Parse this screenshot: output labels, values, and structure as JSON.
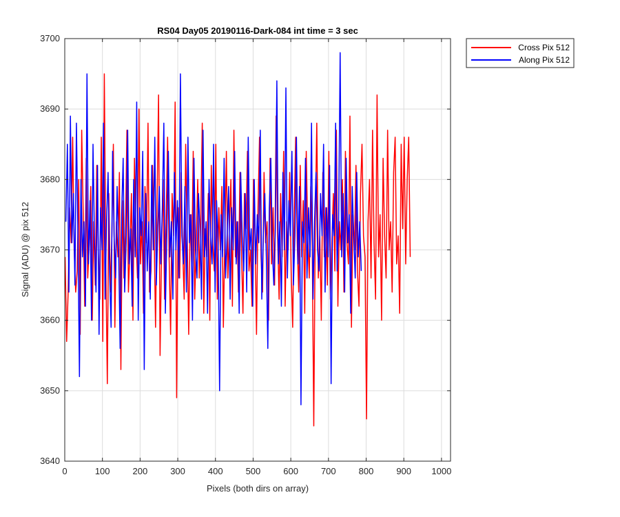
{
  "chart_data": {
    "type": "line",
    "title": "RS04 Day05 20190116-Dark-084 int time = 3 sec",
    "xlabel": "Pixels (both dirs on array)",
    "ylabel": "Signal (ADU) @ pix 512",
    "xlim": [
      0,
      1024
    ],
    "ylim": [
      3640,
      3700
    ],
    "xticks": [
      0,
      100,
      200,
      300,
      400,
      500,
      600,
      700,
      800,
      900,
      1000
    ],
    "yticks": [
      3640,
      3650,
      3660,
      3670,
      3680,
      3690,
      3700
    ],
    "grid": true,
    "legend_position": "outside-top-right",
    "series": [
      {
        "name": "Cross Pix 512",
        "color": "#ff0000",
        "x_start": 1,
        "x_step": 4,
        "values": [
          3669,
          3657,
          3664,
          3676,
          3671,
          3686,
          3670,
          3664,
          3667,
          3680,
          3658,
          3687,
          3675,
          3662,
          3683,
          3666,
          3671,
          3679,
          3660,
          3674,
          3665,
          3682,
          3670,
          3663,
          3686,
          3657,
          3695,
          3668,
          3651,
          3678,
          3664,
          3672,
          3685,
          3659,
          3674,
          3669,
          3681,
          3653,
          3677,
          3666,
          3672,
          3687,
          3664,
          3670,
          3678,
          3660,
          3683,
          3672,
          3666,
          3690,
          3668,
          3674,
          3661,
          3679,
          3671,
          3688,
          3664,
          3667,
          3682,
          3673,
          3659,
          3677,
          3692,
          3655,
          3670,
          3680,
          3663,
          3674,
          3686,
          3669,
          3658,
          3678,
          3672,
          3691,
          3649,
          3676,
          3666,
          3681,
          3670,
          3663,
          3685,
          3672,
          3658,
          3675,
          3668,
          3684,
          3663,
          3671,
          3680,
          3666,
          3674,
          3688,
          3661,
          3673,
          3669,
          3678,
          3660,
          3682,
          3671,
          3667,
          3685,
          3663,
          3676,
          3670,
          3679,
          3659,
          3672,
          3684,
          3666,
          3673,
          3680,
          3662,
          3687,
          3669,
          3674,
          3664,
          3681,
          3670,
          3661,
          3678,
          3673,
          3684,
          3667,
          3670,
          3662,
          3680,
          3672,
          3658,
          3676,
          3686,
          3669,
          3664,
          3681,
          3671,
          3674,
          3660,
          3683,
          3668,
          3676,
          3665,
          3689,
          3672,
          3663,
          3678,
          3669,
          3684,
          3662,
          3674,
          3670,
          3681,
          3667,
          3659,
          3675,
          3686,
          3671,
          3664,
          3682,
          3669,
          3677,
          3661,
          3684,
          3672,
          3666,
          3679,
          3670,
          3645,
          3674,
          3688,
          3666,
          3672,
          3660,
          3681,
          3669,
          3676,
          3665,
          3684,
          3663,
          3671,
          3678,
          3667,
          3687,
          3662,
          3674,
          3670,
          3680,
          3664,
          3684,
          3671,
          3668,
          3689,
          3659,
          3675,
          3670,
          3682,
          3667,
          3662,
          3678,
          3685,
          3672,
          3669,
          3646,
          3674,
          3680,
          3666,
          3687,
          3671,
          3663,
          3692,
          3669,
          3675,
          3660,
          3683,
          3672,
          3666,
          3687,
          3670,
          3674,
          3664,
          3681,
          3686,
          3668,
          3672,
          3661,
          3685,
          3673,
          3686,
          3668,
          3680,
          3686,
          3669
        ]
      },
      {
        "name": "Along Pix 512",
        "color": "#0000ff",
        "x_start": 3,
        "x_step": 4,
        "values": [
          3674,
          3685,
          3664,
          3689,
          3671,
          3678,
          3665,
          3688,
          3672,
          3652,
          3680,
          3669,
          3674,
          3662,
          3695,
          3668,
          3677,
          3660,
          3685,
          3671,
          3664,
          3682,
          3658,
          3676,
          3670,
          3688,
          3663,
          3674,
          3681,
          3667,
          3659,
          3684,
          3672,
          3666,
          3679,
          3670,
          3656,
          3675,
          3683,
          3664,
          3671,
          3687,
          3668,
          3673,
          3662,
          3680,
          3669,
          3691,
          3660,
          3676,
          3672,
          3684,
          3653,
          3678,
          3667,
          3674,
          3663,
          3682,
          3670,
          3686,
          3665,
          3673,
          3679,
          3668,
          3676,
          3688,
          3661,
          3672,
          3684,
          3669,
          3674,
          3663,
          3681,
          3670,
          3677,
          3666,
          3695,
          3672,
          3668,
          3679,
          3664,
          3686,
          3671,
          3675,
          3660,
          3683,
          3670,
          3666,
          3678,
          3673,
          3663,
          3687,
          3669,
          3674,
          3661,
          3680,
          3672,
          3668,
          3685,
          3664,
          3677,
          3671,
          3650,
          3675,
          3669,
          3683,
          3666,
          3672,
          3679,
          3663,
          3676,
          3670,
          3684,
          3668,
          3674,
          3661,
          3681,
          3672,
          3667,
          3678,
          3664,
          3686,
          3670,
          3673,
          3662,
          3680,
          3668,
          3675,
          3671,
          3687,
          3663,
          3672,
          3678,
          3669,
          3656,
          3676,
          3683,
          3670,
          3665,
          3673,
          3694,
          3668,
          3674,
          3662,
          3681,
          3670,
          3693,
          3666,
          3677,
          3672,
          3684,
          3665,
          3672,
          3686,
          3668,
          3679,
          3648,
          3674,
          3671,
          3683,
          3666,
          3676,
          3669,
          3688,
          3663,
          3674,
          3681,
          3670,
          3667,
          3678,
          3672,
          3685,
          3664,
          3676,
          3669,
          3682,
          3651,
          3675,
          3672,
          3688,
          3667,
          3674,
          3698,
          3669,
          3678,
          3664,
          3683,
          3671,
          3675,
          3661,
          3679,
          3672,
          3666,
          3681,
          3669,
          3674,
          3667
        ]
      }
    ]
  }
}
